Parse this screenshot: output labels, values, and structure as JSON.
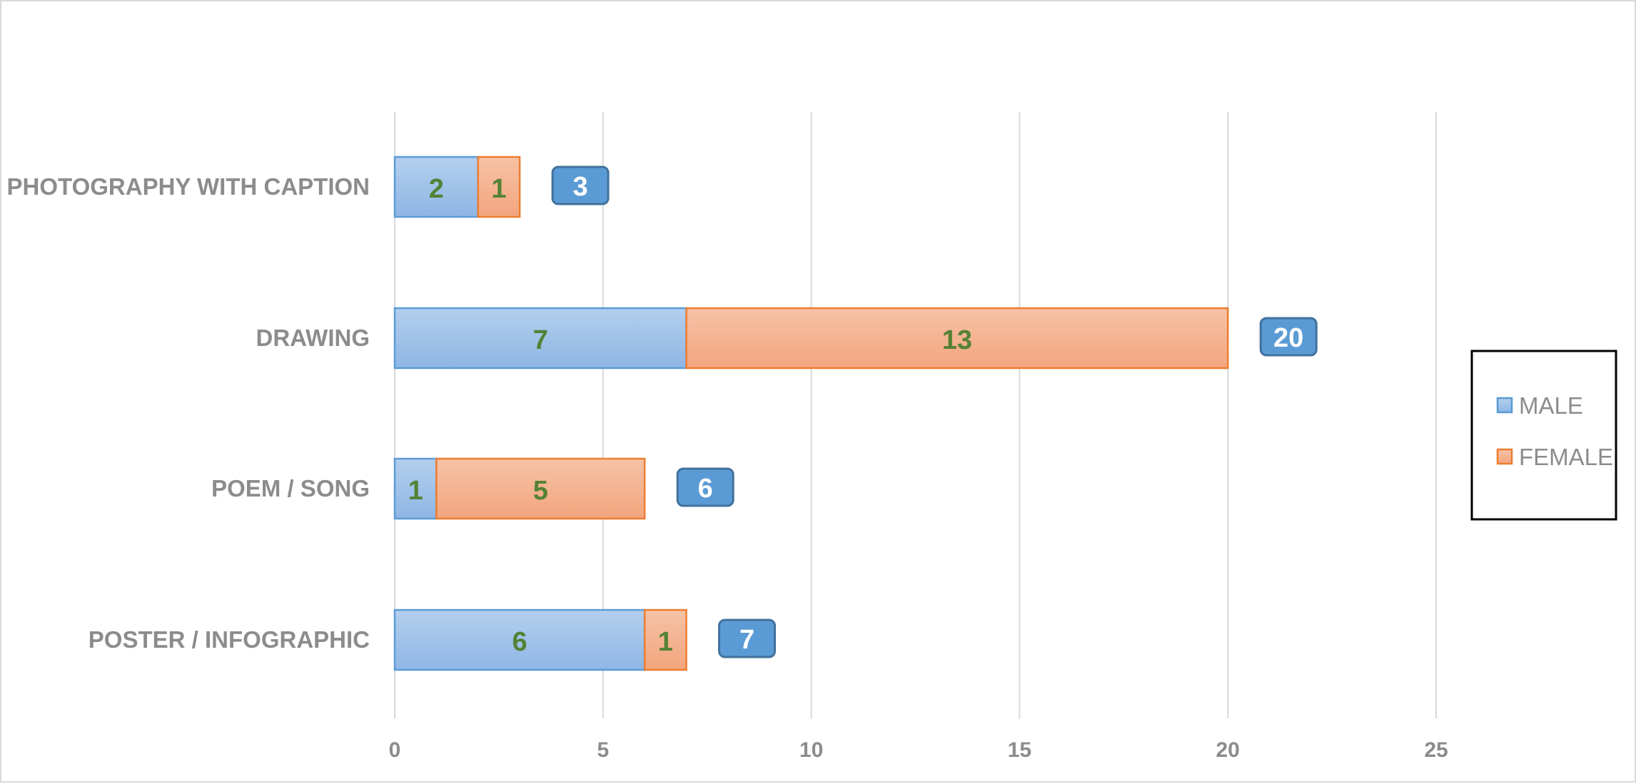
{
  "chart_data": {
    "type": "bar",
    "orientation": "horizontal",
    "stacked": true,
    "categories": [
      "PHOTOGRAPHY WITH CAPTION",
      "DRAWING",
      "POEM / SONG",
      "POSTER / INFOGRAPHIC"
    ],
    "series": [
      {
        "name": "MALE",
        "values": [
          2,
          7,
          1,
          6
        ],
        "color": "#9dc3e6",
        "stroke": "#5b9bd5"
      },
      {
        "name": "FEMALE",
        "values": [
          1,
          13,
          5,
          1
        ],
        "color": "#f4b183",
        "stroke": "#ed7d31"
      }
    ],
    "totals": [
      3,
      20,
      6,
      7
    ],
    "xlim": [
      0,
      25
    ],
    "x_ticks": [
      0,
      5,
      10,
      15,
      20,
      25
    ],
    "grid": true,
    "legend_position": "right",
    "data_label_color": "#548235",
    "total_badge_color": "#5b9bd5"
  }
}
